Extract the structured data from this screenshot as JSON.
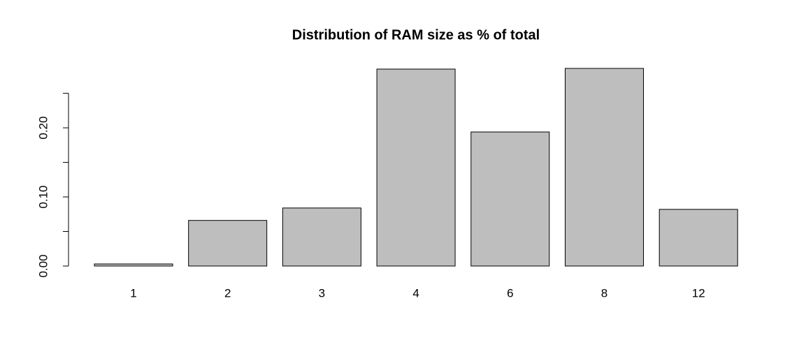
{
  "chart_data": {
    "type": "bar",
    "title": "Distribution of RAM size as % of total",
    "categories": [
      "1",
      "2",
      "3",
      "4",
      "6",
      "8",
      "12"
    ],
    "values": [
      0.003,
      0.066,
      0.084,
      0.285,
      0.194,
      0.286,
      0.082
    ],
    "color": "#bebebe",
    "ylim": [
      0,
      0.29
    ],
    "yticks": [
      {
        "value": 0,
        "label": "0.00"
      },
      {
        "value": 0.1,
        "label": "0.10"
      },
      {
        "value": 0.2,
        "label": "0.20"
      }
    ],
    "yminor_ticks": [
      0.05,
      0.15,
      0.25
    ],
    "grid": false
  }
}
